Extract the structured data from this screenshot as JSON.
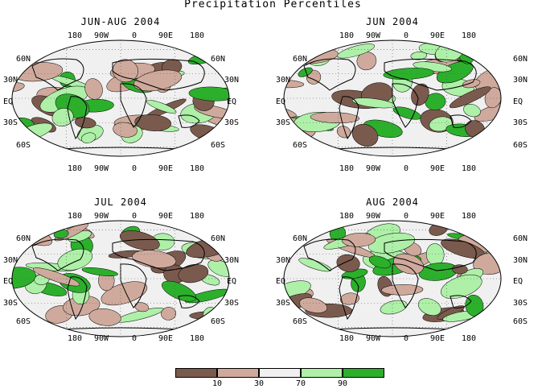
{
  "title": "Precipitation Percentiles",
  "panels": [
    {
      "title": "JUN-AUG 2004"
    },
    {
      "title": "JUN 2004"
    },
    {
      "title": "JUL 2004"
    },
    {
      "title": "AUG 2004"
    }
  ],
  "lon_labels": [
    "180",
    "90W",
    "0",
    "90E",
    "180"
  ],
  "lat_labels_left": [
    "60N",
    "30N",
    "EQ",
    "30S",
    "60S"
  ],
  "lat_labels_right": [
    "60N",
    "30N",
    "EQ",
    "30S",
    "60S"
  ],
  "legend": {
    "colors": [
      "#7b5a4e",
      "#cfaa9c",
      "#f0f0f0",
      "#aef0a8",
      "#2cb02c"
    ],
    "ticks": [
      "10",
      "30",
      "70",
      "90"
    ]
  },
  "colors": {
    "land_outline": "#000000",
    "grid": "#555555"
  }
}
